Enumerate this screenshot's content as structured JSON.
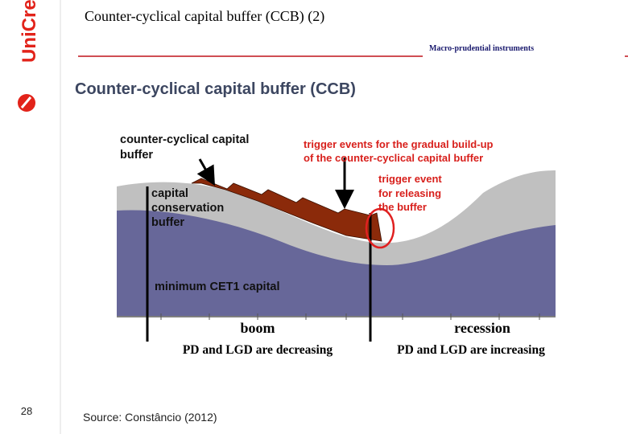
{
  "header": {
    "title": "Counter-cyclical capital buffer (CCB) (2)",
    "section": "Macro-prudential instruments",
    "logo": "UniCredit"
  },
  "figure": {
    "title": "Counter-cyclical capital buffer (CCB)",
    "ccb_label": [
      "counter-cyclical capital",
      "buffer"
    ],
    "conservation_label": [
      "capital",
      "conservation",
      "buffer"
    ],
    "minimum_label": "minimum CET1 capital",
    "buildup_label": [
      "trigger events for the gradual build-up",
      "of the counter-cyclical capital buffer"
    ],
    "release_label": [
      "trigger event",
      "for releasing",
      "the buffer"
    ],
    "phases": [
      {
        "name": "boom",
        "note": "PD and LGD are decreasing"
      },
      {
        "name": "recession",
        "note": "PD and LGD are increasing"
      }
    ]
  },
  "footer": {
    "page": "28",
    "source": "Source: Constâncio (2012)"
  }
}
